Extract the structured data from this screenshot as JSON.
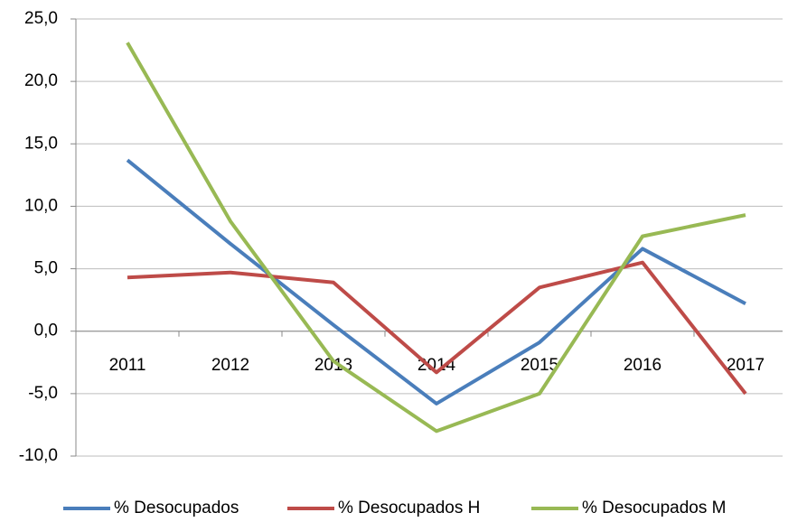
{
  "chart_data": {
    "type": "line",
    "categories": [
      "2011",
      "2012",
      "2013",
      "2014",
      "2015",
      "2016",
      "2017"
    ],
    "series": [
      {
        "name": "% Desocupados",
        "color": "#4a7ebb",
        "values": [
          13.7,
          7.0,
          0.5,
          -5.8,
          -0.9,
          6.6,
          2.2
        ]
      },
      {
        "name": "% Desocupados H",
        "color": "#be4b48",
        "values": [
          4.3,
          4.7,
          3.9,
          -3.3,
          3.5,
          5.5,
          -5.0
        ]
      },
      {
        "name": "% Desocupados M",
        "color": "#98b954",
        "values": [
          23.1,
          8.8,
          -2.4,
          -8.0,
          -5.0,
          7.6,
          9.3
        ]
      }
    ],
    "ylim": [
      -10,
      25
    ],
    "yticks": [
      {
        "value": -10,
        "label": "-10,0"
      },
      {
        "value": -5,
        "label": "-5,0"
      },
      {
        "value": 0,
        "label": "0,0"
      },
      {
        "value": 5,
        "label": "5,0"
      },
      {
        "value": 10,
        "label": "10,0"
      },
      {
        "value": 15,
        "label": "15,0"
      },
      {
        "value": 20,
        "label": "20,0"
      },
      {
        "value": 25,
        "label": "25,0"
      }
    ],
    "grid": true,
    "legend": "bottom"
  }
}
